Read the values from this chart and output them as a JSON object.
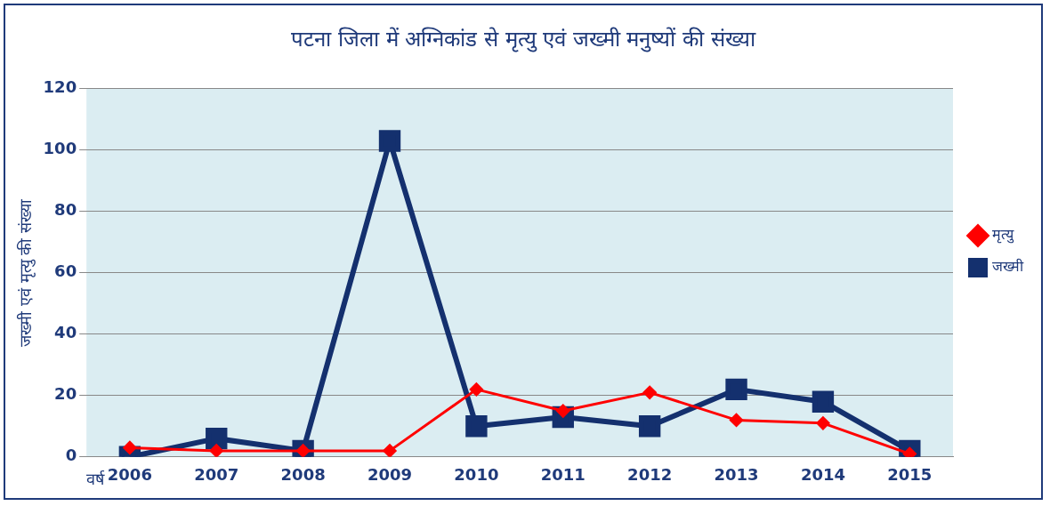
{
  "chart_data": {
    "type": "line",
    "title": "पटना जिला में अग्निकांड से मृत्यु एवं जख्मी मनुष्यों की संख्या",
    "xlabel": "वर्ष",
    "ylabel": "जख्मी एवं मृत्यु की संख्या",
    "categories": [
      "2006",
      "2007",
      "2008",
      "2009",
      "2010",
      "2011",
      "2012",
      "2013",
      "2014",
      "2015"
    ],
    "series": [
      {
        "name": "मृत्यु",
        "color": "#ff0000",
        "marker": "diamond",
        "values": [
          3,
          2,
          2,
          2,
          22,
          15,
          21,
          12,
          11,
          1
        ]
      },
      {
        "name": "जख्मी",
        "color": "#14306e",
        "marker": "square",
        "values": [
          0,
          6,
          2,
          103,
          10,
          13,
          10,
          22,
          18,
          2
        ]
      }
    ],
    "ylim": [
      0,
      120
    ],
    "yticks": [
      0,
      20,
      40,
      60,
      80,
      100,
      120
    ],
    "grid": "y",
    "legend": "right",
    "line_style": "solid"
  }
}
